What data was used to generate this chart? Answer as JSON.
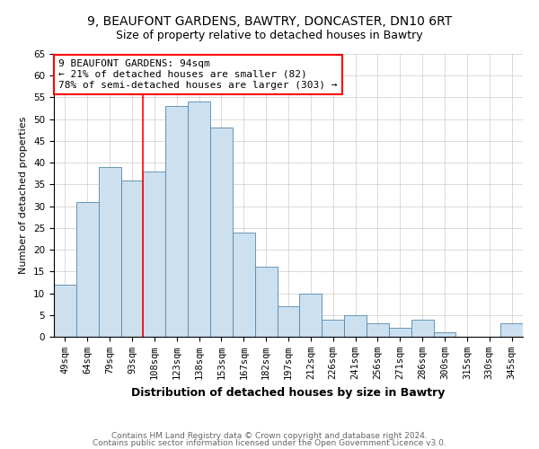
{
  "title1": "9, BEAUFONT GARDENS, BAWTRY, DONCASTER, DN10 6RT",
  "title2": "Size of property relative to detached houses in Bawtry",
  "xlabel": "Distribution of detached houses by size in Bawtry",
  "ylabel": "Number of detached properties",
  "categories": [
    "49sqm",
    "64sqm",
    "79sqm",
    "93sqm",
    "108sqm",
    "123sqm",
    "138sqm",
    "153sqm",
    "167sqm",
    "182sqm",
    "197sqm",
    "212sqm",
    "226sqm",
    "241sqm",
    "256sqm",
    "271sqm",
    "286sqm",
    "300sqm",
    "315sqm",
    "330sqm",
    "345sqm"
  ],
  "values": [
    12,
    31,
    39,
    36,
    38,
    53,
    54,
    48,
    24,
    16,
    7,
    10,
    4,
    5,
    3,
    2,
    4,
    1,
    0,
    0,
    3
  ],
  "bar_color": "#cce0f0",
  "bar_edge_color": "#5588aa",
  "ylim": [
    0,
    65
  ],
  "yticks": [
    0,
    5,
    10,
    15,
    20,
    25,
    30,
    35,
    40,
    45,
    50,
    55,
    60,
    65
  ],
  "property_line_x": 3.5,
  "property_label": "9 BEAUFONT GARDENS: 94sqm",
  "annotation_line1": "← 21% of detached houses are smaller (82)",
  "annotation_line2": "78% of semi-detached houses are larger (303) →",
  "footnote1": "Contains HM Land Registry data © Crown copyright and database right 2024.",
  "footnote2": "Contains public sector information licensed under the Open Government Licence v3.0.",
  "title1_fontsize": 10,
  "title2_fontsize": 9,
  "xlabel_fontsize": 9,
  "ylabel_fontsize": 8,
  "tick_fontsize": 7.5,
  "annotation_fontsize": 8,
  "footnote_fontsize": 6.5
}
